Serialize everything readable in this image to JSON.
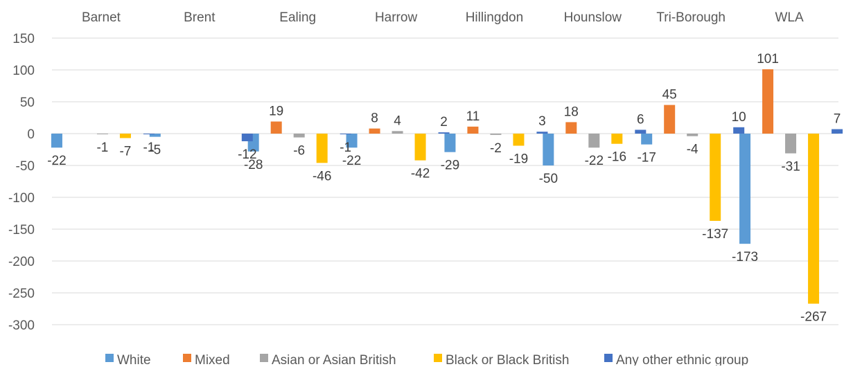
{
  "chart_data": {
    "type": "bar",
    "title": "",
    "xlabel": "",
    "ylabel": "",
    "categories": [
      "Barnet",
      "Brent",
      "Ealing",
      "Harrow",
      "Hillingdon",
      "Hounslow",
      "Tri-Borough",
      "WLA"
    ],
    "ylim": [
      -300,
      150
    ],
    "yticks": [
      150,
      100,
      50,
      0,
      -50,
      -100,
      -150,
      -200,
      -250,
      -300
    ],
    "grid": true,
    "legend_position": "bottom",
    "series": [
      {
        "name": "White",
        "color": "#5b9bd5",
        "values": [
          -22,
          -5,
          -28,
          -22,
          -29,
          -50,
          -17,
          -173
        ],
        "labels": [
          "-22",
          "-5",
          "-28",
          "-22",
          "-29",
          "-50",
          "-17",
          "-173"
        ]
      },
      {
        "name": "Mixed",
        "color": "#ed7d31",
        "values": [
          0,
          0,
          19,
          8,
          11,
          18,
          45,
          101
        ],
        "labels": [
          "",
          "",
          "19",
          "8",
          "11",
          "18",
          "45",
          "101"
        ]
      },
      {
        "name": "Asian or Asian British",
        "color": "#a5a5a5",
        "values": [
          -1,
          0,
          -6,
          4,
          -2,
          -22,
          -4,
          -31
        ],
        "labels": [
          "-1",
          "",
          "-6",
          "4",
          "-2",
          "-22",
          "-4",
          "-31"
        ]
      },
      {
        "name": "Black or Black British",
        "color": "#ffc000",
        "values": [
          -7,
          0,
          -46,
          -42,
          -19,
          -16,
          -137,
          -267
        ],
        "labels": [
          "-7",
          "",
          "-46",
          "-42",
          "-19",
          "-16",
          "-137",
          "-267"
        ]
      },
      {
        "name": "Any other ethnic group",
        "color": "#4472c4",
        "values": [
          -1,
          -12,
          -1,
          2,
          3,
          6,
          10,
          7
        ],
        "labels": [
          "-1",
          "-12",
          "-1",
          "2",
          "3",
          "6",
          "10",
          "7"
        ]
      }
    ]
  }
}
